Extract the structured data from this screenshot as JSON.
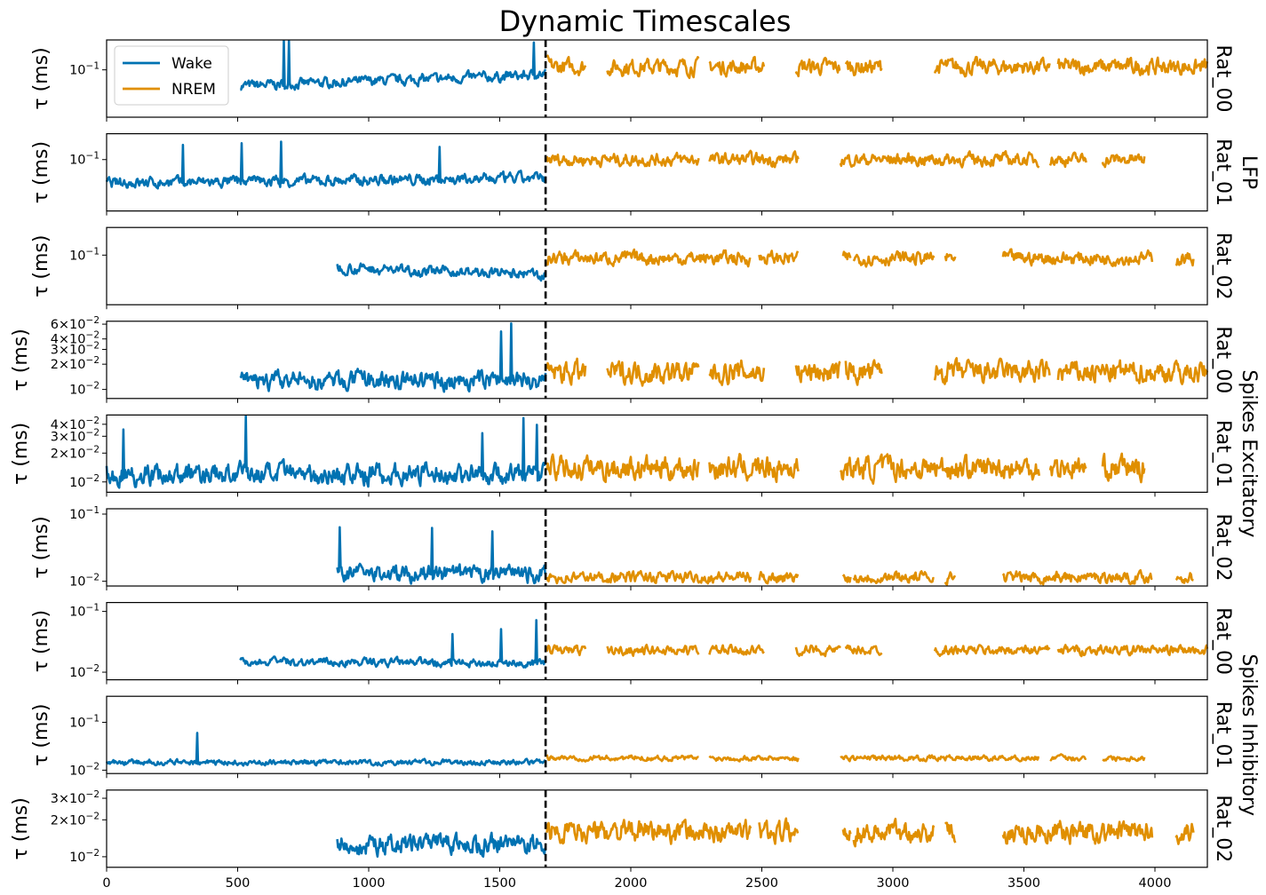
{
  "chart_data": {
    "type": "line",
    "title": "Dynamic Timescales",
    "xlim": [
      0,
      4200
    ],
    "x_ticks": [
      "0",
      "500",
      "1000",
      "1500",
      "2000",
      "2500",
      "3000",
      "3500",
      "4000"
    ],
    "x_tick_values": [
      0,
      500,
      1000,
      1500,
      2000,
      2500,
      3000,
      3500,
      4000
    ],
    "ylabel": "τ (ms)",
    "y_scale": "log",
    "grid": false,
    "legend": {
      "placement": "top-left (first panel)",
      "entries": [
        "Wake",
        "NREM"
      ]
    },
    "colors": {
      "Wake": "#0072b2",
      "NREM": "#e08f00",
      "boundary": "#000000"
    },
    "wake_nrem_boundary_x": 1675,
    "group_labels": [
      "LFP",
      "Spikes Excitatory",
      "Spikes Inhibitory"
    ],
    "panels": [
      {
        "group": "LFP",
        "rat": "Rat_00",
        "ylim": [
          0.022,
          0.26
        ],
        "y_ticks": [
          {
            "value": 0.1,
            "label": "10^-1"
          }
        ],
        "wake": {
          "start": 510,
          "median": 0.06,
          "end_median": 0.085,
          "spread": 0.13
        },
        "nrem": {
          "median": 0.11,
          "spread": 0.2,
          "segments": [
            [
              1680,
              1830
            ],
            [
              1910,
              2260
            ],
            [
              2300,
              2510
            ],
            [
              2630,
              2800
            ],
            [
              2820,
              2960
            ],
            [
              3160,
              3600
            ],
            [
              3630,
              4200
            ]
          ]
        }
      },
      {
        "group": "LFP",
        "rat": "Rat_01",
        "ylim": [
          0.015,
          0.26
        ],
        "y_ticks": [
          {
            "value": 0.1,
            "label": "10^-1"
          }
        ],
        "wake": {
          "start": 0,
          "median": 0.042,
          "end_median": 0.05,
          "spread": 0.16
        },
        "nrem": {
          "median": 0.1,
          "spread": 0.18,
          "segments": [
            [
              1680,
              2260
            ],
            [
              2300,
              2640
            ],
            [
              2800,
              3560
            ],
            [
              3600,
              3740
            ],
            [
              3800,
              3960
            ]
          ]
        }
      },
      {
        "group": "LFP",
        "rat": "Rat_02",
        "ylim": [
          0.018,
          0.26
        ],
        "y_ticks": [
          {
            "value": 0.1,
            "label": "10^-1"
          }
        ],
        "wake": {
          "start": 880,
          "median": 0.065,
          "end_median": 0.05,
          "spread": 0.14
        },
        "nrem": {
          "median": 0.09,
          "spread": 0.18,
          "segments": [
            [
              1680,
              2460
            ],
            [
              2490,
              2640
            ],
            [
              2810,
              2840
            ],
            [
              2850,
              3160
            ],
            [
              3200,
              3240
            ],
            [
              3420,
              3990
            ],
            [
              4080,
              4150
            ]
          ]
        }
      },
      {
        "group": "Spikes Excitatory",
        "rat": "Rat_00",
        "ylim": [
          0.0078,
          0.065
        ],
        "y_ticks": [
          {
            "value": 0.01,
            "label": "10^-2"
          },
          {
            "value": 0.02,
            "label": "2×10^-2"
          },
          {
            "value": 0.03,
            "label": "3×10^-2"
          },
          {
            "value": 0.04,
            "label": "4×10^-2"
          },
          {
            "value": 0.06,
            "label": "6×10^-2"
          }
        ],
        "wake": {
          "start": 510,
          "median": 0.0125,
          "end_median": 0.013,
          "spread": 0.2
        },
        "nrem": {
          "median": 0.016,
          "spread": 0.24,
          "segments": [
            [
              1680,
              1830
            ],
            [
              1910,
              2260
            ],
            [
              2300,
              2510
            ],
            [
              2630,
              2800
            ],
            [
              2820,
              2960
            ],
            [
              3160,
              3600
            ],
            [
              3630,
              4200
            ]
          ]
        }
      },
      {
        "group": "Spikes Excitatory",
        "rat": "Rat_01",
        "ylim": [
          0.0078,
          0.05
        ],
        "y_ticks": [
          {
            "value": 0.01,
            "label": "10^-2"
          },
          {
            "value": 0.02,
            "label": "2×10^-2"
          },
          {
            "value": 0.03,
            "label": "3×10^-2"
          },
          {
            "value": 0.04,
            "label": "4×10^-2"
          }
        ],
        "wake": {
          "start": 0,
          "median": 0.012,
          "end_median": 0.012,
          "spread": 0.2
        },
        "nrem": {
          "median": 0.014,
          "spread": 0.22,
          "segments": [
            [
              1680,
              2260
            ],
            [
              2300,
              2640
            ],
            [
              2800,
              3560
            ],
            [
              3600,
              3740
            ],
            [
              3800,
              3960
            ]
          ]
        }
      },
      {
        "group": "Spikes Excitatory",
        "rat": "Rat_02",
        "ylim": [
          0.0085,
          0.12
        ],
        "y_ticks": [
          {
            "value": 0.01,
            "label": "10^-2"
          },
          {
            "value": 0.1,
            "label": "10^-1"
          }
        ],
        "wake": {
          "start": 880,
          "median": 0.013,
          "end_median": 0.0125,
          "spread": 0.22
        },
        "nrem": {
          "median": 0.0115,
          "spread": 0.15,
          "segments": [
            [
              1680,
              2460
            ],
            [
              2490,
              2640
            ],
            [
              2810,
              2840
            ],
            [
              2850,
              3160
            ],
            [
              3200,
              3240
            ],
            [
              3420,
              3990
            ],
            [
              4080,
              4150
            ]
          ]
        }
      },
      {
        "group": "Spikes Inhibitory",
        "rat": "Rat_00",
        "ylim": [
          0.0075,
          0.14
        ],
        "y_ticks": [
          {
            "value": 0.01,
            "label": "10^-2"
          },
          {
            "value": 0.1,
            "label": "10^-1"
          }
        ],
        "wake": {
          "start": 510,
          "median": 0.015,
          "end_median": 0.014,
          "spread": 0.12
        },
        "nrem": {
          "median": 0.023,
          "spread": 0.14,
          "segments": [
            [
              1680,
              1830
            ],
            [
              1910,
              2260
            ],
            [
              2300,
              2510
            ],
            [
              2630,
              2800
            ],
            [
              2820,
              2960
            ],
            [
              3160,
              3600
            ],
            [
              3630,
              4200
            ]
          ]
        }
      },
      {
        "group": "Spikes Inhibitory",
        "rat": "Rat_01",
        "ylim": [
          0.0085,
          0.35
        ],
        "y_ticks": [
          {
            "value": 0.01,
            "label": "10^-2"
          },
          {
            "value": 0.1,
            "label": "10^-1"
          }
        ],
        "wake": {
          "start": 0,
          "median": 0.0145,
          "end_median": 0.0145,
          "spread": 0.1
        },
        "nrem": {
          "median": 0.018,
          "spread": 0.1,
          "segments": [
            [
              1680,
              2260
            ],
            [
              2300,
              2640
            ],
            [
              2800,
              3560
            ],
            [
              3600,
              3740
            ],
            [
              3800,
              3960
            ]
          ]
        }
      },
      {
        "group": "Spikes Inhibitory",
        "rat": "Rat_02",
        "ylim": [
          0.0082,
          0.035
        ],
        "y_ticks": [
          {
            "value": 0.01,
            "label": "10^-2"
          },
          {
            "value": 0.02,
            "label": "2×10^-2"
          },
          {
            "value": 0.03,
            "label": "3×10^-2"
          }
        ],
        "wake": {
          "start": 880,
          "median": 0.0125,
          "end_median": 0.0125,
          "spread": 0.15
        },
        "nrem": {
          "median": 0.016,
          "spread": 0.16,
          "segments": [
            [
              1680,
              2460
            ],
            [
              2490,
              2640
            ],
            [
              2810,
              2840
            ],
            [
              2850,
              3160
            ],
            [
              3200,
              3240
            ],
            [
              3420,
              3990
            ],
            [
              4080,
              4150
            ]
          ]
        }
      }
    ]
  }
}
